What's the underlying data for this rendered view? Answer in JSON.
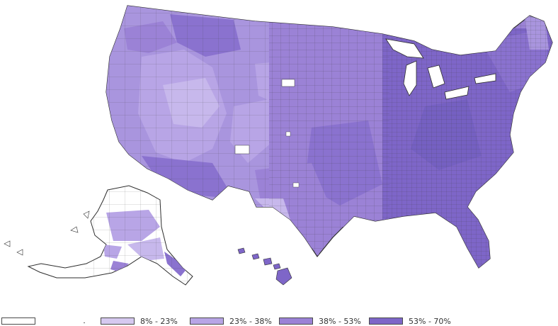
{
  "legend": {
    "items": [
      {
        "label": "",
        "color": "#ffffff"
      },
      {
        "label": "8% - 23%",
        "color": "#d6c9f0"
      },
      {
        "label": "23% - 38%",
        "color": "#b8a5e6"
      },
      {
        "label": "38% - 53%",
        "color": "#9b82d6"
      },
      {
        "label": "53% - 70%",
        "color": "#7e66c8"
      }
    ]
  },
  "colors": {
    "border": "#3d3d3d",
    "outline": "#2e2e2e"
  }
}
